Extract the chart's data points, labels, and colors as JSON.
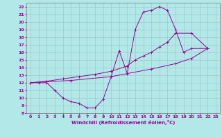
{
  "xlabel": "Windchill (Refroidissement éolien,°C)",
  "background_color": "#b2e8e8",
  "grid_color": "#9ec8c8",
  "line_color": "#990099",
  "xlim": [
    -0.5,
    23.5
  ],
  "ylim": [
    8,
    22.5
  ],
  "xticks": [
    0,
    1,
    2,
    3,
    4,
    5,
    6,
    7,
    8,
    9,
    10,
    11,
    12,
    13,
    14,
    15,
    16,
    17,
    18,
    19,
    20,
    21,
    22,
    23
  ],
  "yticks": [
    8,
    9,
    10,
    11,
    12,
    13,
    14,
    15,
    16,
    17,
    18,
    19,
    20,
    21,
    22
  ],
  "series": [
    {
      "x": [
        0,
        1,
        2,
        3,
        4,
        5,
        6,
        7,
        8,
        9,
        10,
        11,
        12,
        13,
        14,
        15,
        16,
        17,
        18,
        19,
        20,
        22
      ],
      "y": [
        12,
        12,
        12,
        11,
        10,
        9.5,
        9.3,
        8.7,
        8.7,
        9.8,
        12.8,
        16.2,
        13.2,
        19.0,
        21.3,
        21.5,
        22.0,
        21.5,
        19.0,
        16.0,
        16.5,
        16.5
      ]
    },
    {
      "x": [
        0,
        2,
        4,
        6,
        8,
        10,
        12,
        13,
        14,
        15,
        16,
        17,
        18,
        20,
        22
      ],
      "y": [
        12,
        12.2,
        12.5,
        12.8,
        13.1,
        13.5,
        14.2,
        15.0,
        15.5,
        16.0,
        16.7,
        17.3,
        18.5,
        18.5,
        16.5
      ]
    },
    {
      "x": [
        0,
        5,
        10,
        15,
        18,
        20,
        22
      ],
      "y": [
        12,
        12.3,
        12.8,
        13.8,
        14.5,
        15.2,
        16.5
      ]
    }
  ]
}
